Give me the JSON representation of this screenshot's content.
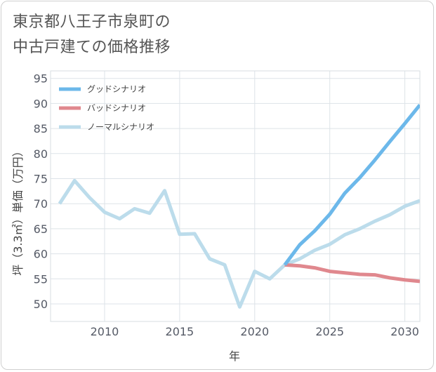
{
  "title": {
    "line1": "東京都八王子市泉町の",
    "line2": "中古戸建ての価格推移"
  },
  "chart_data": {
    "type": "line",
    "xlabel": "年",
    "ylabel": "坪（3.3㎡）単価（万円）",
    "xlim": [
      2006.4,
      2031
    ],
    "ylim": [
      46.5,
      96.5
    ],
    "x_ticks": [
      2010,
      2015,
      2020,
      2025,
      2030
    ],
    "y_ticks": [
      50,
      55,
      60,
      65,
      70,
      75,
      80,
      85,
      90,
      95
    ],
    "grid": true,
    "legend_position": "top-left",
    "series": [
      {
        "name": "グッドシナリオ",
        "color": "#6cb8ea",
        "x": [
          2022,
          2023,
          2024,
          2025,
          2026,
          2027,
          2028,
          2029,
          2030,
          2031
        ],
        "values": [
          57.8,
          61.8,
          64.6,
          67.9,
          72.1,
          75.2,
          78.7,
          82.4,
          86,
          89.7
        ]
      },
      {
        "name": "バッドシナリオ",
        "color": "#e0888e",
        "x": [
          2022,
          2023,
          2024,
          2025,
          2026,
          2027,
          2028,
          2029,
          2030,
          2031
        ],
        "values": [
          57.8,
          57.6,
          57.2,
          56.5,
          56.2,
          55.9,
          55.8,
          55.2,
          54.8,
          54.5
        ]
      },
      {
        "name": "ノーマルシナリオ",
        "color": "#bcdceb",
        "x": [
          2007,
          2008,
          2009,
          2010,
          2011,
          2012,
          2013,
          2014,
          2015,
          2016,
          2017,
          2018,
          2019,
          2020,
          2021,
          2022,
          2023,
          2024,
          2025,
          2026,
          2027,
          2028,
          2029,
          2030,
          2031
        ],
        "values": [
          70,
          74.6,
          71.2,
          68.3,
          67,
          69,
          68.1,
          72.6,
          63.9,
          64,
          59,
          57.8,
          49.4,
          56.5,
          55,
          57.8,
          59,
          60.7,
          61.9,
          63.8,
          65,
          66.5,
          67.8,
          69.5,
          70.6
        ]
      }
    ]
  }
}
